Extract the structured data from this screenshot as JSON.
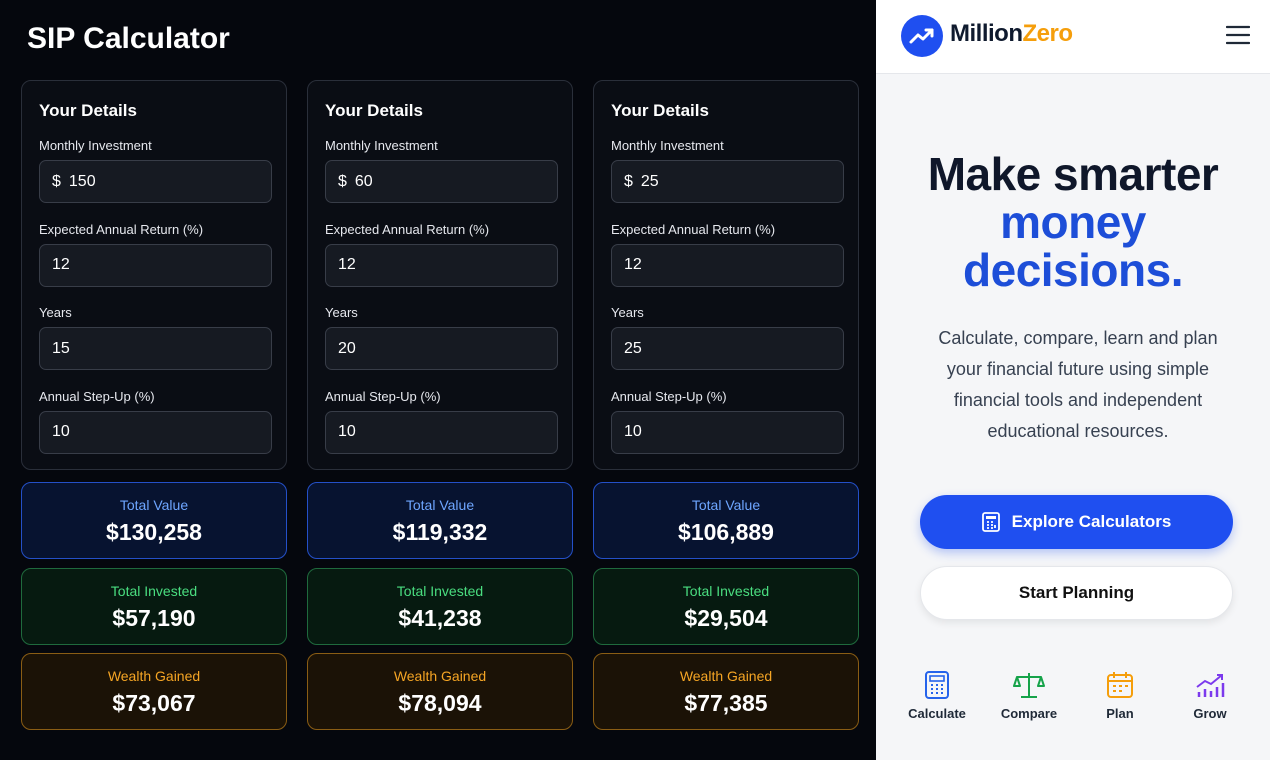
{
  "title": "SIP Calculator",
  "calculators": [
    {
      "heading": "Your Details",
      "fields": [
        {
          "label": "Monthly Investment",
          "prefix": "$",
          "value": 150
        },
        {
          "label": "Expected Annual Return (%)",
          "value": 12
        },
        {
          "label": "Years",
          "value": 15
        },
        {
          "label": "Annual Step-Up (%)",
          "value": 10
        }
      ],
      "results": [
        {
          "label": "Total Value",
          "value": "$130,258"
        },
        {
          "label": "Total Invested",
          "value": "$57,190"
        },
        {
          "label": "Wealth Gained",
          "value": "$73,067"
        }
      ]
    },
    {
      "heading": "Your Details",
      "fields": [
        {
          "label": "Monthly Investment",
          "prefix": "$",
          "value": 60
        },
        {
          "label": "Expected Annual Return (%)",
          "value": 12
        },
        {
          "label": "Years",
          "value": 20
        },
        {
          "label": "Annual Step-Up (%)",
          "value": 10
        }
      ],
      "results": [
        {
          "label": "Total Value",
          "value": "$119,332"
        },
        {
          "label": "Total Invested",
          "value": "$41,238"
        },
        {
          "label": "Wealth Gained",
          "value": "$78,094"
        }
      ]
    },
    {
      "heading": "Your Details",
      "fields": [
        {
          "label": "Monthly Investment",
          "prefix": "$",
          "value": 25
        },
        {
          "label": "Expected Annual Return (%)",
          "value": 12
        },
        {
          "label": "Years",
          "value": 25
        },
        {
          "label": "Annual Step-Up (%)",
          "value": 10
        }
      ],
      "results": [
        {
          "label": "Total Value",
          "value": "$106,889"
        },
        {
          "label": "Total Invested",
          "value": "$29,504"
        },
        {
          "label": "Wealth Gained",
          "value": "$77,385"
        }
      ]
    }
  ],
  "brand": {
    "name": "Million",
    "accent": "Zero"
  },
  "hero": {
    "headline": "Make smarter",
    "highlight": [
      "money",
      "decisions."
    ],
    "description": "Calculate, compare, learn and plan your financial future using simple financial tools and independent educational resources.",
    "primary_button": "Explore Calculators",
    "secondary_button": "Start Planning"
  },
  "nav": [
    {
      "label": "Calculate"
    },
    {
      "label": "Compare"
    },
    {
      "label": "Plan"
    },
    {
      "label": "Grow"
    }
  ]
}
